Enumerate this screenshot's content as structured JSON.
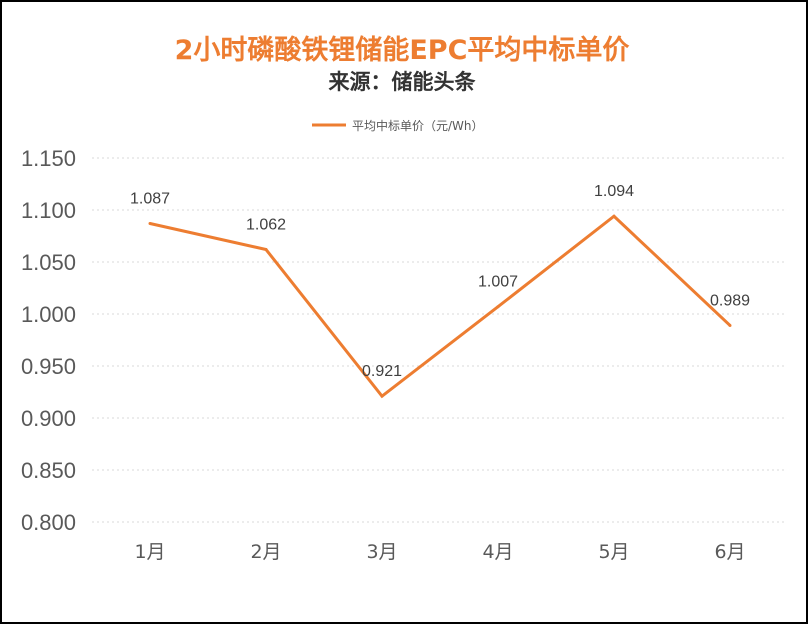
{
  "chart_data": {
    "type": "line",
    "title": "2小时磷酸铁锂储能EPC平均中标单价",
    "subtitle": "来源：储能头条",
    "xlabel": "",
    "ylabel": "",
    "categories": [
      "1月",
      "2月",
      "3月",
      "4月",
      "5月",
      "6月"
    ],
    "series": [
      {
        "name": "平均中标单价（元/Wh）",
        "values": [
          1.087,
          1.062,
          0.921,
          1.007,
          1.094,
          0.989
        ],
        "value_labels": [
          "1.087",
          "1.062",
          "0.921",
          "1.007",
          "1.094",
          "0.989"
        ]
      }
    ],
    "ylim": [
      0.8,
      1.15
    ],
    "yticks": [
      "0.800",
      "0.850",
      "0.900",
      "0.950",
      "1.000",
      "1.050",
      "1.100",
      "1.150"
    ],
    "grid": true,
    "legend_position": "top",
    "colors": {
      "title": "#ED7D31",
      "line": "#ED7D31",
      "grid": "#D9D9D9"
    }
  }
}
